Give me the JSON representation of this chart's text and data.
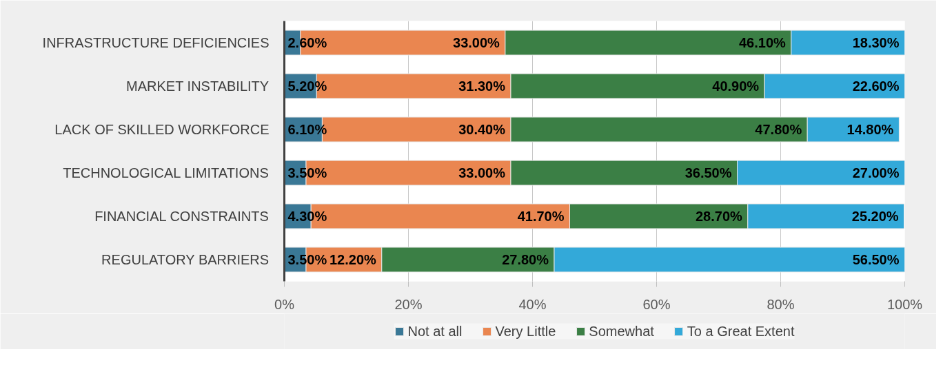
{
  "chart_data": {
    "type": "bar",
    "orientation": "horizontal",
    "stacked": true,
    "categories": [
      "INFRASTRUCTURE DEFICIENCIES",
      "MARKET INSTABILITY",
      "LACK OF SKILLED WORKFORCE",
      "TECHNOLOGICAL LIMITATIONS",
      "FINANCIAL CONSTRAINTS",
      "REGULATORY BARRIERS"
    ],
    "series": [
      {
        "name": "Not at all",
        "color": "#3a7896",
        "values": [
          2.6,
          5.2,
          6.1,
          3.5,
          4.3,
          3.5
        ],
        "value_labels": [
          "2.60%",
          "5.20%",
          "6.10%",
          "3.50%",
          "4.30%",
          "3.50%"
        ]
      },
      {
        "name": "Very Little",
        "color": "#ea8650",
        "values": [
          33.0,
          31.3,
          30.4,
          33.0,
          41.7,
          12.2
        ],
        "value_labels": [
          "33.00%",
          "31.30%",
          "30.40%",
          "33.00%",
          "41.70%",
          "12.20%"
        ]
      },
      {
        "name": "Somewhat",
        "color": "#3b7f45",
        "values": [
          46.1,
          40.9,
          47.8,
          36.5,
          28.7,
          27.8
        ],
        "value_labels": [
          "46.10%",
          "40.90%",
          "47.80%",
          "36.50%",
          "28.70%",
          "27.80%"
        ]
      },
      {
        "name": "To a Great Extent",
        "color": "#33a9d9",
        "values": [
          18.3,
          22.6,
          14.8,
          27.0,
          25.2,
          56.5
        ],
        "value_labels": [
          "18.30%",
          "22.60%",
          "14.80%",
          "27.00%",
          "25.20%",
          "56.50%"
        ]
      }
    ],
    "xlim": [
      0,
      100
    ],
    "xticks": [
      {
        "value": 0,
        "label": "0%"
      },
      {
        "value": 20,
        "label": "20%"
      },
      {
        "value": 40,
        "label": "40%"
      },
      {
        "value": 60,
        "label": "60%"
      },
      {
        "value": 80,
        "label": "80%"
      },
      {
        "value": 100,
        "label": "100%"
      }
    ],
    "grid": "x",
    "legend": "bottom"
  }
}
